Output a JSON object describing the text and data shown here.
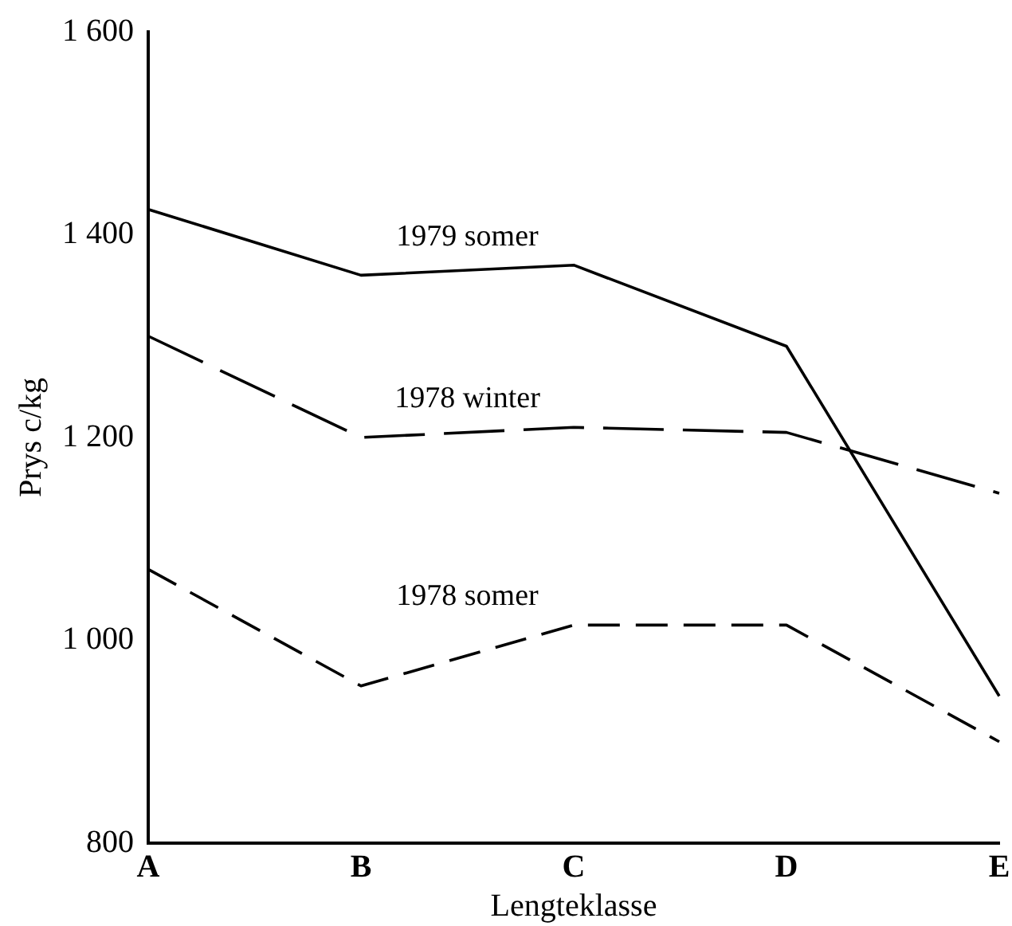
{
  "chart_data": {
    "type": "line",
    "xlabel": "Lengteklasse",
    "ylabel": "Prys c/kg",
    "categories": [
      "A",
      "B",
      "C",
      "D",
      "E"
    ],
    "ylim": [
      800,
      1600
    ],
    "yticks": [
      {
        "value": 800,
        "label": "800"
      },
      {
        "value": 1000,
        "label": "1 000"
      },
      {
        "value": 1200,
        "label": "1 200"
      },
      {
        "value": 1400,
        "label": "1 400"
      },
      {
        "value": 1600,
        "label": "1 600"
      }
    ],
    "grid": false,
    "legend": false,
    "marker": "none",
    "series": [
      {
        "name": "1979 somer",
        "color": "#000000",
        "line_style": "solid",
        "values": [
          1425,
          1360,
          1370,
          1290,
          945
        ]
      },
      {
        "name": "1978 winter",
        "color": "#000000",
        "line_style": "dashed",
        "values": [
          1300,
          1200,
          1210,
          1205,
          1145
        ]
      },
      {
        "name": "1978 somer",
        "color": "#000000",
        "line_style": "dotted",
        "values": [
          1070,
          955,
          1015,
          1015,
          900
        ]
      }
    ]
  }
}
